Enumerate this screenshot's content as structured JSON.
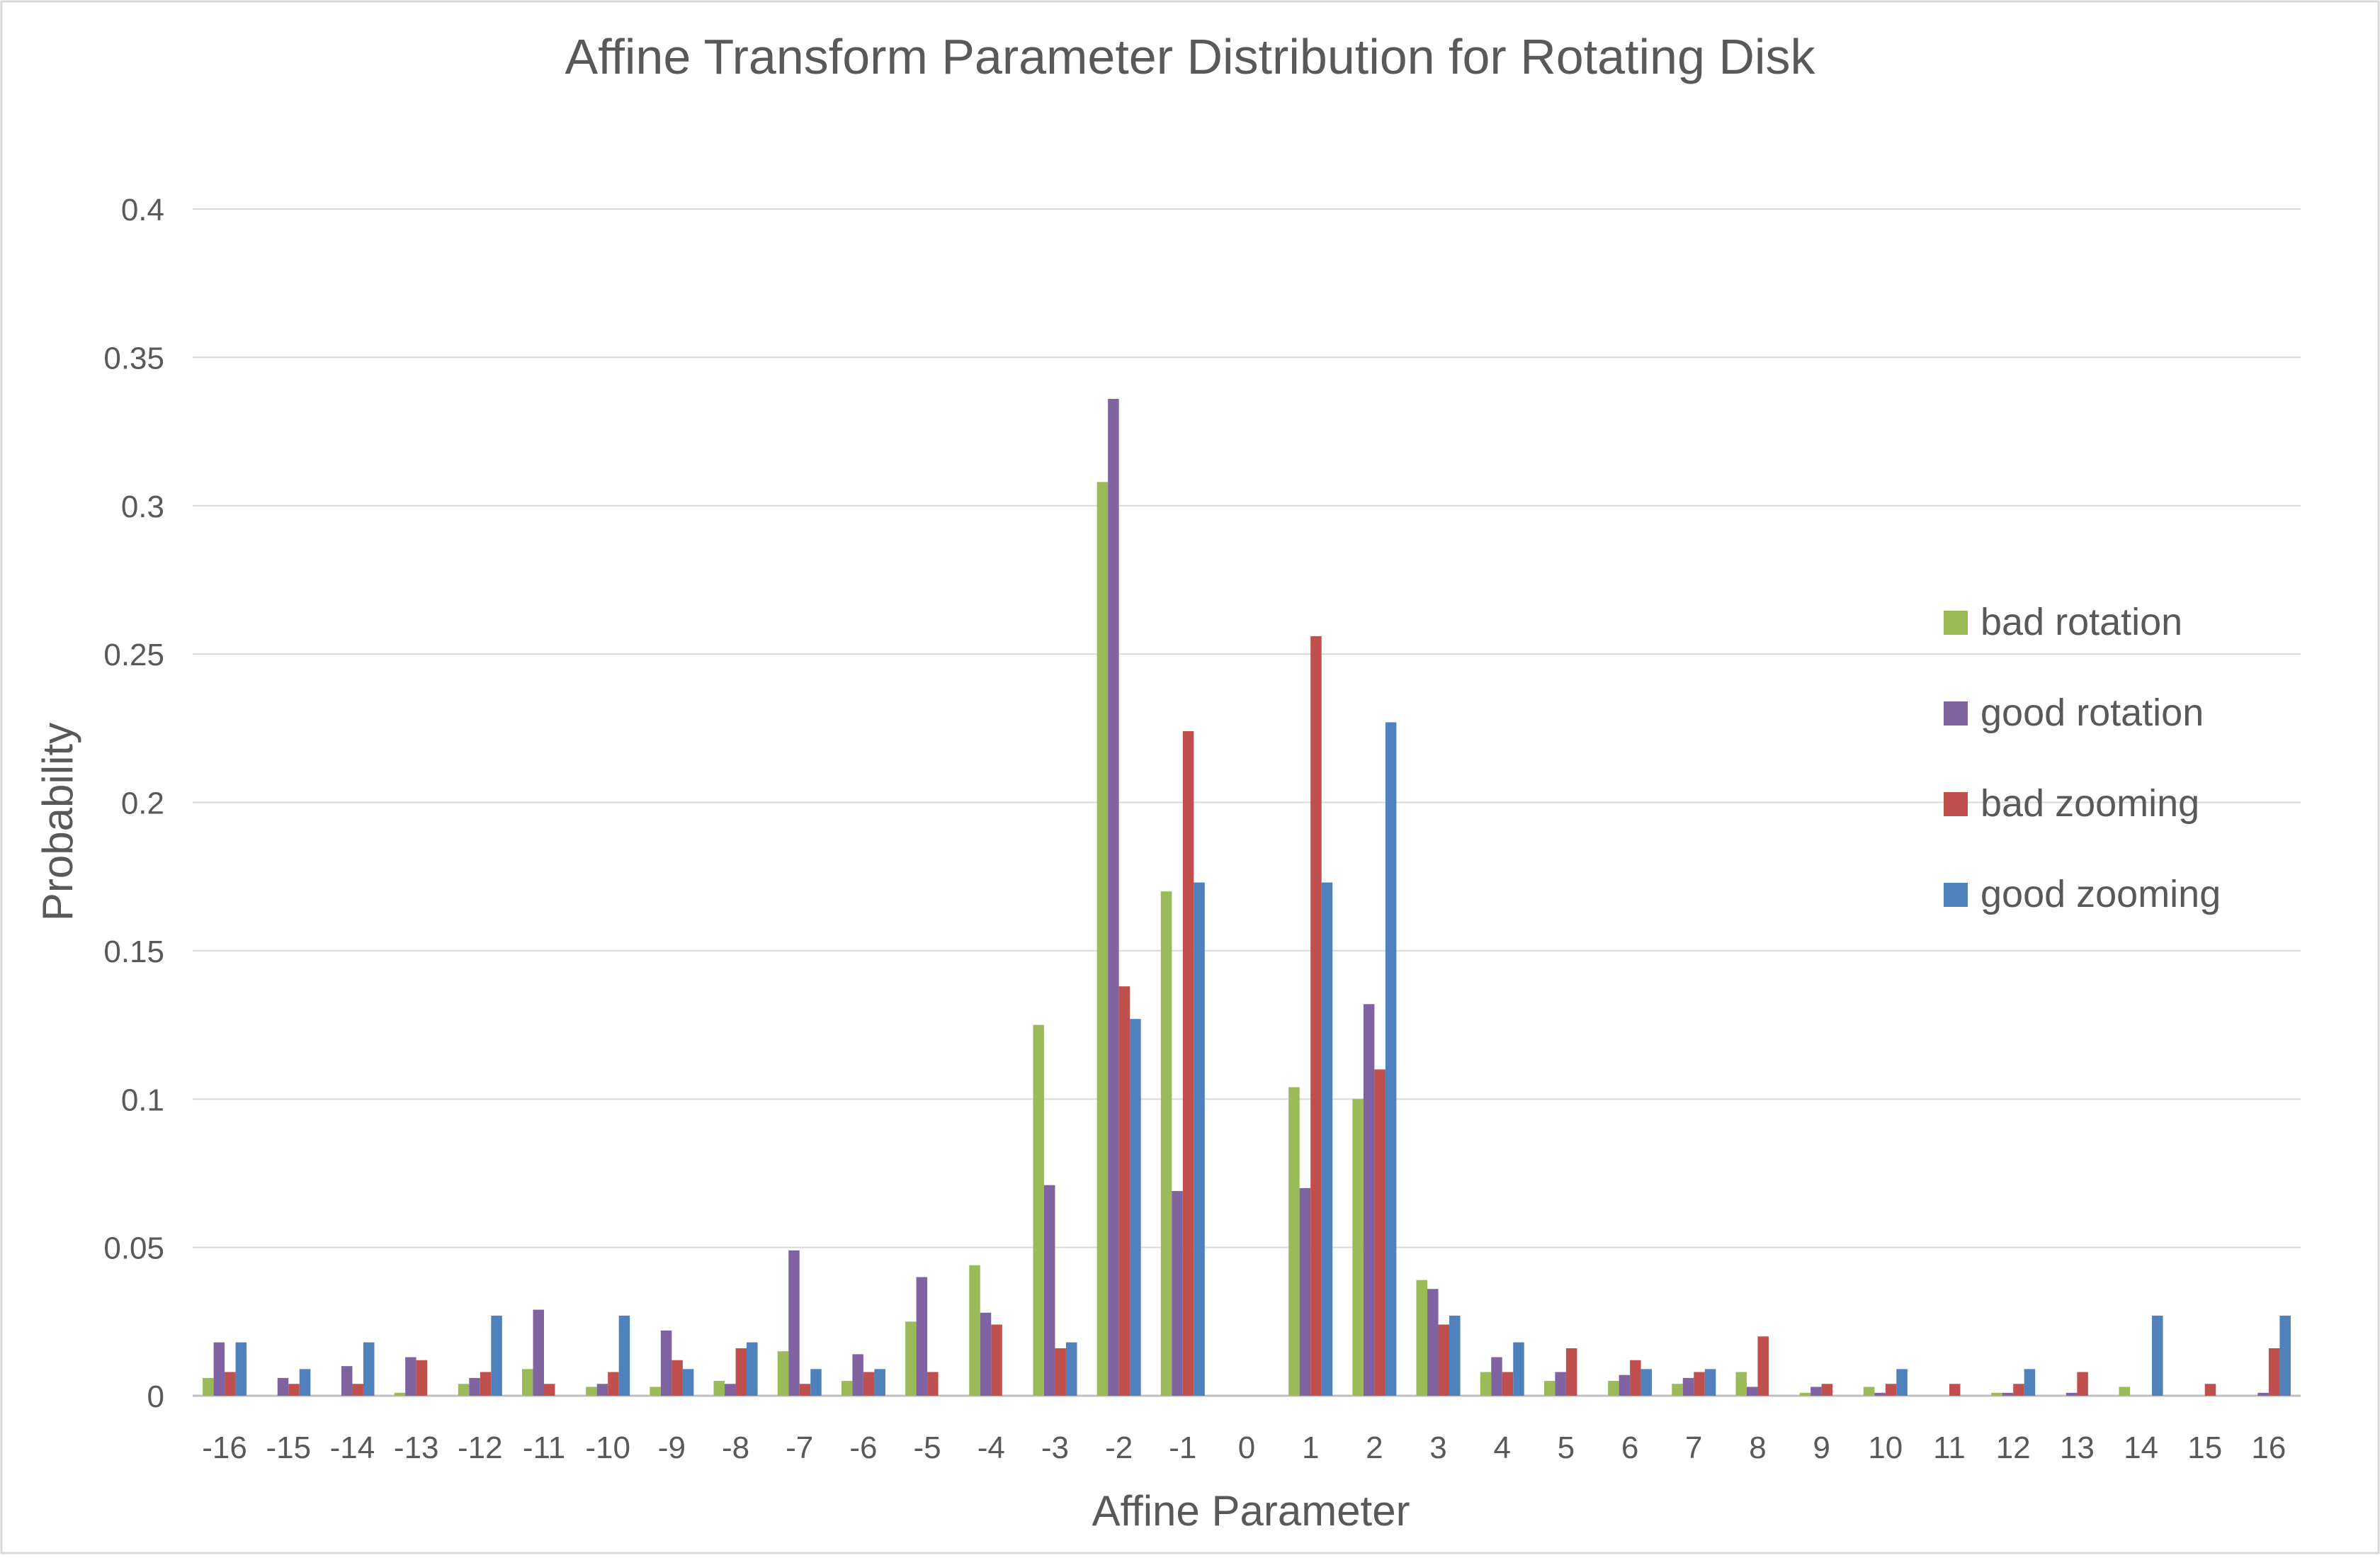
{
  "chart_data": {
    "type": "bar",
    "title": "Affine Transform Parameter Distribution for Rotating Disk",
    "xlabel": "Affine Parameter",
    "ylabel": "Probability",
    "ylim": [
      0,
      0.4
    ],
    "yticks": [
      "0",
      "0.05",
      "0.1",
      "0.15",
      "0.2",
      "0.25",
      "0.3",
      "0.35",
      "0.4"
    ],
    "ytick_values": [
      0,
      0.05,
      0.1,
      0.15,
      0.2,
      0.25,
      0.3,
      0.35,
      0.4
    ],
    "grid": true,
    "legend_position": "right",
    "categories": [
      "-16",
      "-15",
      "-14",
      "-13",
      "-12",
      "-11",
      "-10",
      "-9",
      "-8",
      "-7",
      "-6",
      "-5",
      "-4",
      "-3",
      "-2",
      "-1",
      "0",
      "1",
      "2",
      "3",
      "4",
      "5",
      "6",
      "7",
      "8",
      "9",
      "10",
      "11",
      "12",
      "13",
      "14",
      "15",
      "16"
    ],
    "series": [
      {
        "name": "bad rotation",
        "color": "#9bbb59",
        "values": [
          0.006,
          0,
          0,
          0.001,
          0.004,
          0.009,
          0.003,
          0.003,
          0.005,
          0.015,
          0.005,
          0.025,
          0.044,
          0.125,
          0.308,
          0.17,
          0,
          0.104,
          0.1,
          0.039,
          0.008,
          0.005,
          0.005,
          0.004,
          0.008,
          0.001,
          0.003,
          0,
          0.001,
          0,
          0.003,
          0,
          0
        ]
      },
      {
        "name": "good rotation",
        "color": "#8064a2",
        "values": [
          0.018,
          0.006,
          0.01,
          0.013,
          0.006,
          0.029,
          0.004,
          0.022,
          0.004,
          0.049,
          0.014,
          0.04,
          0.028,
          0.071,
          0.336,
          0.069,
          0,
          0.07,
          0.132,
          0.036,
          0.013,
          0.008,
          0.007,
          0.006,
          0.003,
          0.003,
          0.001,
          0,
          0.001,
          0.001,
          0,
          0,
          0.001
        ]
      },
      {
        "name": "bad zooming",
        "color": "#c0504d",
        "values": [
          0.008,
          0.004,
          0.004,
          0.012,
          0.008,
          0.004,
          0.008,
          0.012,
          0.016,
          0.004,
          0.008,
          0.008,
          0.024,
          0.016,
          0.138,
          0.224,
          0,
          0.256,
          0.11,
          0.024,
          0.008,
          0.016,
          0.012,
          0.008,
          0.02,
          0.004,
          0.004,
          0.004,
          0.004,
          0.008,
          0,
          0.004,
          0.016
        ]
      },
      {
        "name": "good zooming",
        "color": "#4f81bd",
        "values": [
          0.018,
          0.009,
          0.018,
          0,
          0.027,
          0,
          0.027,
          0.009,
          0.018,
          0.009,
          0.009,
          0,
          0,
          0.018,
          0.127,
          0.173,
          0,
          0.173,
          0.227,
          0.027,
          0.018,
          0,
          0.009,
          0.009,
          0,
          0,
          0.009,
          0,
          0.009,
          0,
          0.027,
          0,
          0.027
        ]
      }
    ]
  }
}
